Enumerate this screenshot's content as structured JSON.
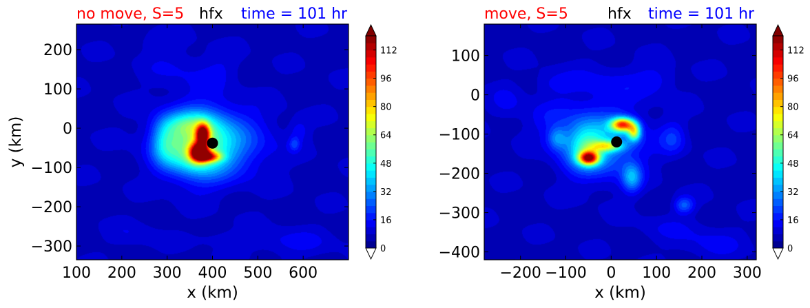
{
  "chart_data": [
    {
      "type": "heatmap",
      "title_parts": [
        {
          "text": "no move, S=5",
          "color": "#ff0000"
        },
        {
          "text": "hfx",
          "color": "#000000"
        },
        {
          "text": "time = 101 hr",
          "color": "#0000ff"
        }
      ],
      "xlabel": "x (km)",
      "ylabel": "y (km)",
      "xlim": [
        100,
        700
      ],
      "ylim": [
        -335,
        265
      ],
      "xticks": [
        100,
        200,
        300,
        400,
        500,
        600
      ],
      "yticks": [
        -300,
        -200,
        -100,
        0,
        100,
        200
      ],
      "xtick_labels": [
        "100",
        "200",
        "300",
        "400",
        "500",
        "600"
      ],
      "ytick_labels": [
        "−300",
        "−200",
        "−100",
        "0",
        "100",
        "200"
      ],
      "center_marker": {
        "x": 400,
        "y": -38
      },
      "colorbar": {
        "ticks": [
          0,
          16,
          32,
          48,
          64,
          80,
          96,
          112
        ],
        "tick_labels": [
          "0",
          "16",
          "32",
          "48",
          "64",
          "80",
          "96",
          "112"
        ],
        "extend": "both"
      },
      "features": [
        {
          "x": 400,
          "y": -38,
          "sx": 75,
          "sy": 60,
          "v": 28
        },
        {
          "x": 365,
          "y": -40,
          "sx": 45,
          "sy": 55,
          "v": 32
        },
        {
          "x": 295,
          "y": -35,
          "sx": 22,
          "sy": 38,
          "v": 22
        },
        {
          "x": 345,
          "y": 10,
          "sx": 40,
          "sy": 22,
          "v": 18
        },
        {
          "x": 378,
          "y": -15,
          "sx": 10,
          "sy": 18,
          "v": 85
        },
        {
          "x": 370,
          "y": -60,
          "sx": 14,
          "sy": 16,
          "v": 95
        },
        {
          "x": 392,
          "y": -72,
          "sx": 18,
          "sy": 9,
          "v": 55
        },
        {
          "x": 330,
          "y": 150,
          "sx": 55,
          "sy": 40,
          "v": 5
        },
        {
          "x": 270,
          "y": 220,
          "sx": 30,
          "sy": 20,
          "v": 4
        },
        {
          "x": 420,
          "y": 150,
          "sx": 30,
          "sy": 30,
          "v": 4
        },
        {
          "x": 580,
          "y": -40,
          "sx": 8,
          "sy": 12,
          "v": 12
        },
        {
          "x": 590,
          "y": -5,
          "sx": 15,
          "sy": 20,
          "v": 7
        },
        {
          "x": 425,
          "y": -280,
          "sx": 50,
          "sy": 14,
          "v": 4
        },
        {
          "x": 570,
          "y": -290,
          "sx": 70,
          "sy": 25,
          "v": 6
        },
        {
          "x": 230,
          "y": -270,
          "sx": 40,
          "sy": 25,
          "v": 4
        },
        {
          "x": 350,
          "y": -80,
          "sx": 40,
          "sy": 25,
          "v": 8
        }
      ]
    },
    {
      "type": "heatmap",
      "title_parts": [
        {
          "text": "move, S=5",
          "color": "#ff0000"
        },
        {
          "text": "hfx",
          "color": "#000000"
        },
        {
          "text": "time = 101 hr",
          "color": "#0000ff"
        }
      ],
      "xlabel": "x (km)",
      "ylabel": "",
      "xlim": [
        -280,
        320
      ],
      "ylim": [
        -420,
        180
      ],
      "xticks": [
        -200,
        -100,
        0,
        100,
        200,
        300
      ],
      "yticks": [
        -400,
        -300,
        -200,
        -100,
        0,
        100
      ],
      "xtick_labels": [
        "−200",
        "−100",
        "0",
        "100",
        "200",
        "300"
      ],
      "ytick_labels": [
        "−400",
        "−300",
        "−200",
        "−100",
        "0",
        "100"
      ],
      "center_marker": {
        "x": 12,
        "y": -120
      },
      "colorbar": {
        "ticks": [
          0,
          16,
          32,
          48,
          64,
          80,
          96,
          112
        ],
        "tick_labels": [
          "0",
          "16",
          "32",
          "48",
          "64",
          "80",
          "96",
          "112"
        ],
        "extend": "both"
      },
      "features": [
        {
          "x": -20,
          "y": -120,
          "sx": 60,
          "sy": 60,
          "v": 26
        },
        {
          "x": -60,
          "y": -130,
          "sx": 30,
          "sy": 40,
          "v": 25
        },
        {
          "x": 25,
          "y": -75,
          "sx": 18,
          "sy": 12,
          "v": 80
        },
        {
          "x": 50,
          "y": -95,
          "sx": 10,
          "sy": 15,
          "v": 50
        },
        {
          "x": -50,
          "y": -160,
          "sx": 15,
          "sy": 12,
          "v": 85
        },
        {
          "x": -10,
          "y": -130,
          "sx": 25,
          "sy": 10,
          "v": 40
        },
        {
          "x": 45,
          "y": -210,
          "sx": 15,
          "sy": 25,
          "v": 25
        },
        {
          "x": 135,
          "y": -110,
          "sx": 20,
          "sy": 30,
          "v": 12
        },
        {
          "x": 160,
          "y": -280,
          "sx": 15,
          "sy": 15,
          "v": 18
        },
        {
          "x": -120,
          "y": -110,
          "sx": 15,
          "sy": 20,
          "v": 18
        },
        {
          "x": 0,
          "y": 30,
          "sx": 80,
          "sy": 35,
          "v": 6
        },
        {
          "x": -130,
          "y": 30,
          "sx": 30,
          "sy": 20,
          "v": 5
        },
        {
          "x": 100,
          "y": 40,
          "sx": 30,
          "sy": 25,
          "v": 5
        },
        {
          "x": -140,
          "y": -60,
          "sx": 40,
          "sy": 30,
          "v": 6
        },
        {
          "x": -230,
          "y": -20,
          "sx": 25,
          "sy": 30,
          "v": 6
        },
        {
          "x": 220,
          "y": -380,
          "sx": 50,
          "sy": 30,
          "v": 6
        },
        {
          "x": 120,
          "y": -340,
          "sx": 50,
          "sy": 25,
          "v": 4
        }
      ]
    }
  ]
}
